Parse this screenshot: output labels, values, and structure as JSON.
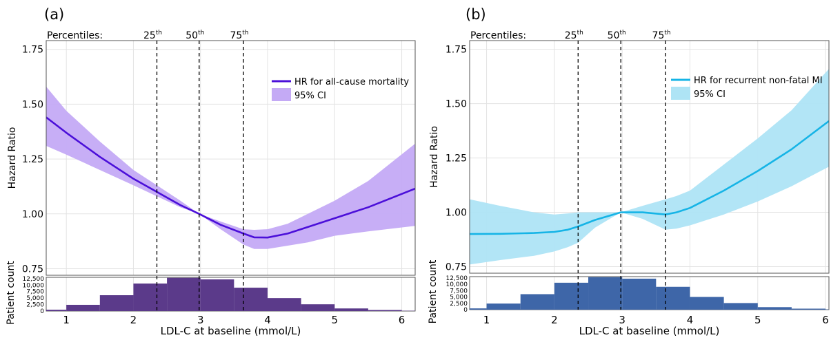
{
  "chart_data": [
    {
      "panel_label": "(a)",
      "type": "line",
      "colors": {
        "line": "#4b0fd9",
        "ci": "#c4aaf5",
        "hist": "#5b3a8a"
      },
      "percentiles_label": "Percentiles:",
      "percentiles": [
        {
          "base": "25",
          "sup": "th",
          "x": 2.35
        },
        {
          "base": "50",
          "sup": "th",
          "x": 2.98
        },
        {
          "base": "75",
          "sup": "th",
          "x": 3.64
        }
      ],
      "xlabel": "LDL-C at baseline (mmol/L)",
      "ylabel": "Hazard Ratio",
      "hist_ylabel": "Patient count",
      "xlim": [
        0.7,
        6.2
      ],
      "ylim": [
        0.72,
        1.79
      ],
      "hist_ylim": [
        0,
        13000
      ],
      "xticks": [
        "1",
        "2",
        "3",
        "4",
        "5",
        "6"
      ],
      "yticks": [
        "0.75",
        "1.00",
        "1.25",
        "1.50",
        "1.75"
      ],
      "hist_yticks": [
        "0",
        "2,500",
        "5,000",
        "7,500",
        "10,000",
        "12,500"
      ],
      "legend": {
        "line": "HR for all-cause mortality",
        "ci": "95% CI",
        "position": "top-right"
      },
      "hr_curve": {
        "x": [
          0.7,
          1.0,
          1.5,
          2.0,
          2.35,
          2.7,
          2.98,
          3.3,
          3.64,
          3.8,
          4.0,
          4.3,
          4.6,
          5.0,
          5.5,
          6.2
        ],
        "y": [
          1.44,
          1.37,
          1.26,
          1.16,
          1.1,
          1.04,
          1.0,
          0.95,
          0.91,
          0.893,
          0.892,
          0.91,
          0.94,
          0.98,
          1.03,
          1.115
        ],
        "lower": [
          1.31,
          1.27,
          1.2,
          1.13,
          1.08,
          1.03,
          1.0,
          0.93,
          0.86,
          0.84,
          0.84,
          0.855,
          0.87,
          0.9,
          0.92,
          0.945
        ],
        "upper": [
          1.58,
          1.47,
          1.33,
          1.2,
          1.13,
          1.06,
          1.0,
          0.965,
          0.93,
          0.927,
          0.93,
          0.955,
          1.0,
          1.06,
          1.15,
          1.32
        ]
      },
      "histogram": {
        "bin_edges": [
          0.7,
          1.0,
          1.5,
          2.0,
          2.5,
          3.0,
          3.5,
          4.0,
          4.5,
          5.0,
          5.5,
          6.0,
          6.2
        ],
        "counts": [
          500,
          2400,
          6100,
          10600,
          12800,
          12200,
          9000,
          5000,
          2600,
          1000,
          400,
          100
        ]
      }
    },
    {
      "panel_label": "(b)",
      "type": "line",
      "colors": {
        "line": "#16b4e6",
        "ci": "#aee4f5",
        "hist": "#3e66a8"
      },
      "percentiles_label": "Percentiles:",
      "percentiles": [
        {
          "base": "25",
          "sup": "th",
          "x": 2.35
        },
        {
          "base": "50",
          "sup": "th",
          "x": 2.98
        },
        {
          "base": "75",
          "sup": "th",
          "x": 3.64
        }
      ],
      "xlabel": "LDL-C at baseline (mmol/L)",
      "ylabel": "Hazard Ratio",
      "hist_ylabel": "Patient count",
      "xlim": [
        0.75,
        6.05
      ],
      "ylim": [
        0.72,
        1.79
      ],
      "hist_ylim": [
        0,
        13000
      ],
      "xticks": [
        "1",
        "2",
        "3",
        "4",
        "5",
        "6"
      ],
      "yticks": [
        "0.75",
        "1.00",
        "1.25",
        "1.50",
        "1.75"
      ],
      "hist_yticks": [
        "0",
        "2,500",
        "5,000",
        "7,500",
        "10,000",
        "12,500"
      ],
      "legend": {
        "line": "HR for recurrent non-fatal MI",
        "ci": "95% CI",
        "position": "top-right"
      },
      "hr_curve": {
        "x": [
          0.75,
          1.2,
          1.7,
          2.0,
          2.2,
          2.35,
          2.6,
          2.98,
          3.3,
          3.64,
          3.8,
          4.0,
          4.5,
          5.0,
          5.5,
          6.05
        ],
        "y": [
          0.9,
          0.901,
          0.905,
          0.91,
          0.92,
          0.935,
          0.965,
          1.0,
          1.0,
          0.99,
          1.0,
          1.02,
          1.1,
          1.19,
          1.29,
          1.42
        ],
        "lower": [
          0.76,
          0.78,
          0.8,
          0.82,
          0.84,
          0.86,
          0.93,
          1.0,
          0.97,
          0.92,
          0.925,
          0.94,
          0.99,
          1.05,
          1.12,
          1.21
        ],
        "upper": [
          1.06,
          1.03,
          1.0,
          0.99,
          0.995,
          1.0,
          1.0,
          1.0,
          1.03,
          1.06,
          1.075,
          1.1,
          1.22,
          1.34,
          1.47,
          1.66
        ]
      },
      "histogram": {
        "bin_edges": [
          0.75,
          1.0,
          1.5,
          2.0,
          2.5,
          3.0,
          3.5,
          4.0,
          4.5,
          5.0,
          5.5,
          6.0,
          6.05
        ],
        "counts": [
          500,
          2400,
          6100,
          10600,
          12800,
          12200,
          9000,
          5000,
          2600,
          1000,
          400,
          100
        ]
      }
    }
  ]
}
